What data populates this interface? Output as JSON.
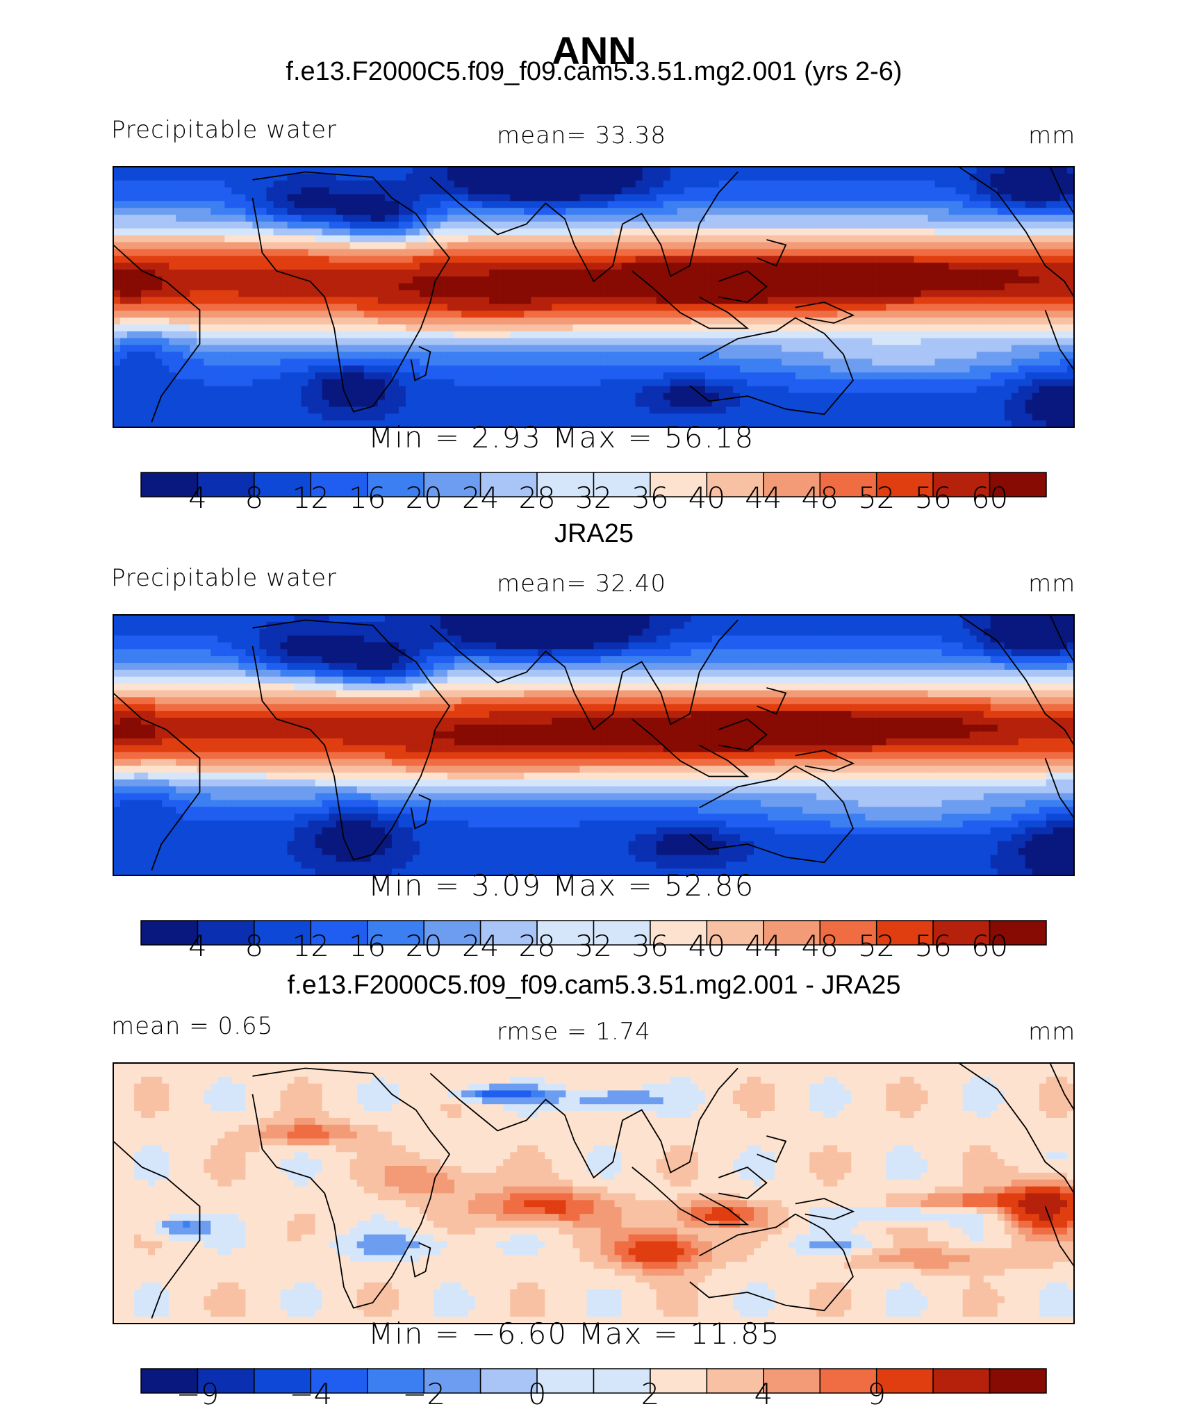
{
  "title": "ANN",
  "colors": {
    "palette": [
      "#08187e",
      "#0a2fb0",
      "#0e48d6",
      "#1f5ef0",
      "#3c7ff2",
      "#6d9df0",
      "#a9c5f7",
      "#d6e6fa",
      "#fde3cf",
      "#f8c1a3",
      "#f39a76",
      "#f06c42",
      "#e03e10",
      "#b5210b",
      "#870a03"
    ],
    "coast": "#000000"
  },
  "chart_data": [
    {
      "type": "heatmap",
      "panel_title": "f.e13.F2000C5.f09_f09.cam5.3.51.mg2.001 (yrs 2-6)",
      "left_label": "Precipitable water",
      "center_label": "mean=   33.38",
      "units": "mm",
      "field": "model",
      "mean": 33.38,
      "min_max_text": "Min  =    2.93  Max  =   56.18",
      "min": 2.93,
      "max": 56.18,
      "contour_levels": [
        4,
        8,
        12,
        16,
        20,
        24,
        28,
        32,
        36,
        40,
        44,
        48,
        52,
        56,
        60
      ],
      "colorbar_ticks": [
        "4",
        "8",
        "12",
        "16",
        "20",
        "24",
        "28",
        "32",
        "36",
        "40",
        "44",
        "48",
        "52",
        "56",
        "60"
      ]
    },
    {
      "type": "heatmap",
      "panel_title": "JRA25",
      "left_label": "Precipitable water",
      "center_label": "mean=   32.40",
      "units": "mm",
      "field": "obs",
      "mean": 32.4,
      "min_max_text": "Min  =    3.09  Max  =   52.86",
      "min": 3.09,
      "max": 52.86,
      "contour_levels": [
        4,
        8,
        12,
        16,
        20,
        24,
        28,
        32,
        36,
        40,
        44,
        48,
        52,
        56,
        60
      ],
      "colorbar_ticks": [
        "4",
        "8",
        "12",
        "16",
        "20",
        "24",
        "28",
        "32",
        "36",
        "40",
        "44",
        "48",
        "52",
        "56",
        "60"
      ]
    },
    {
      "type": "heatmap",
      "panel_title": "f.e13.F2000C5.f09_f09.cam5.3.51.mg2.001 - JRA25",
      "left_label": "mean =    0.65",
      "center_label": "rmse =    1.74",
      "units": "mm",
      "field": "diff",
      "mean": 0.65,
      "rmse": 1.74,
      "min_max_text": "Min  =   −6.60  Max  =   11.85",
      "min": -6.6,
      "max": 11.85,
      "contour_levels": [
        -9,
        -6,
        -4,
        -3,
        -2,
        -1,
        0,
        1,
        2,
        3,
        4,
        6,
        9
      ],
      "colorbar_ticks": [
        "−9",
        "−4",
        "−2",
        "0",
        "2",
        "4",
        "9"
      ]
    }
  ]
}
